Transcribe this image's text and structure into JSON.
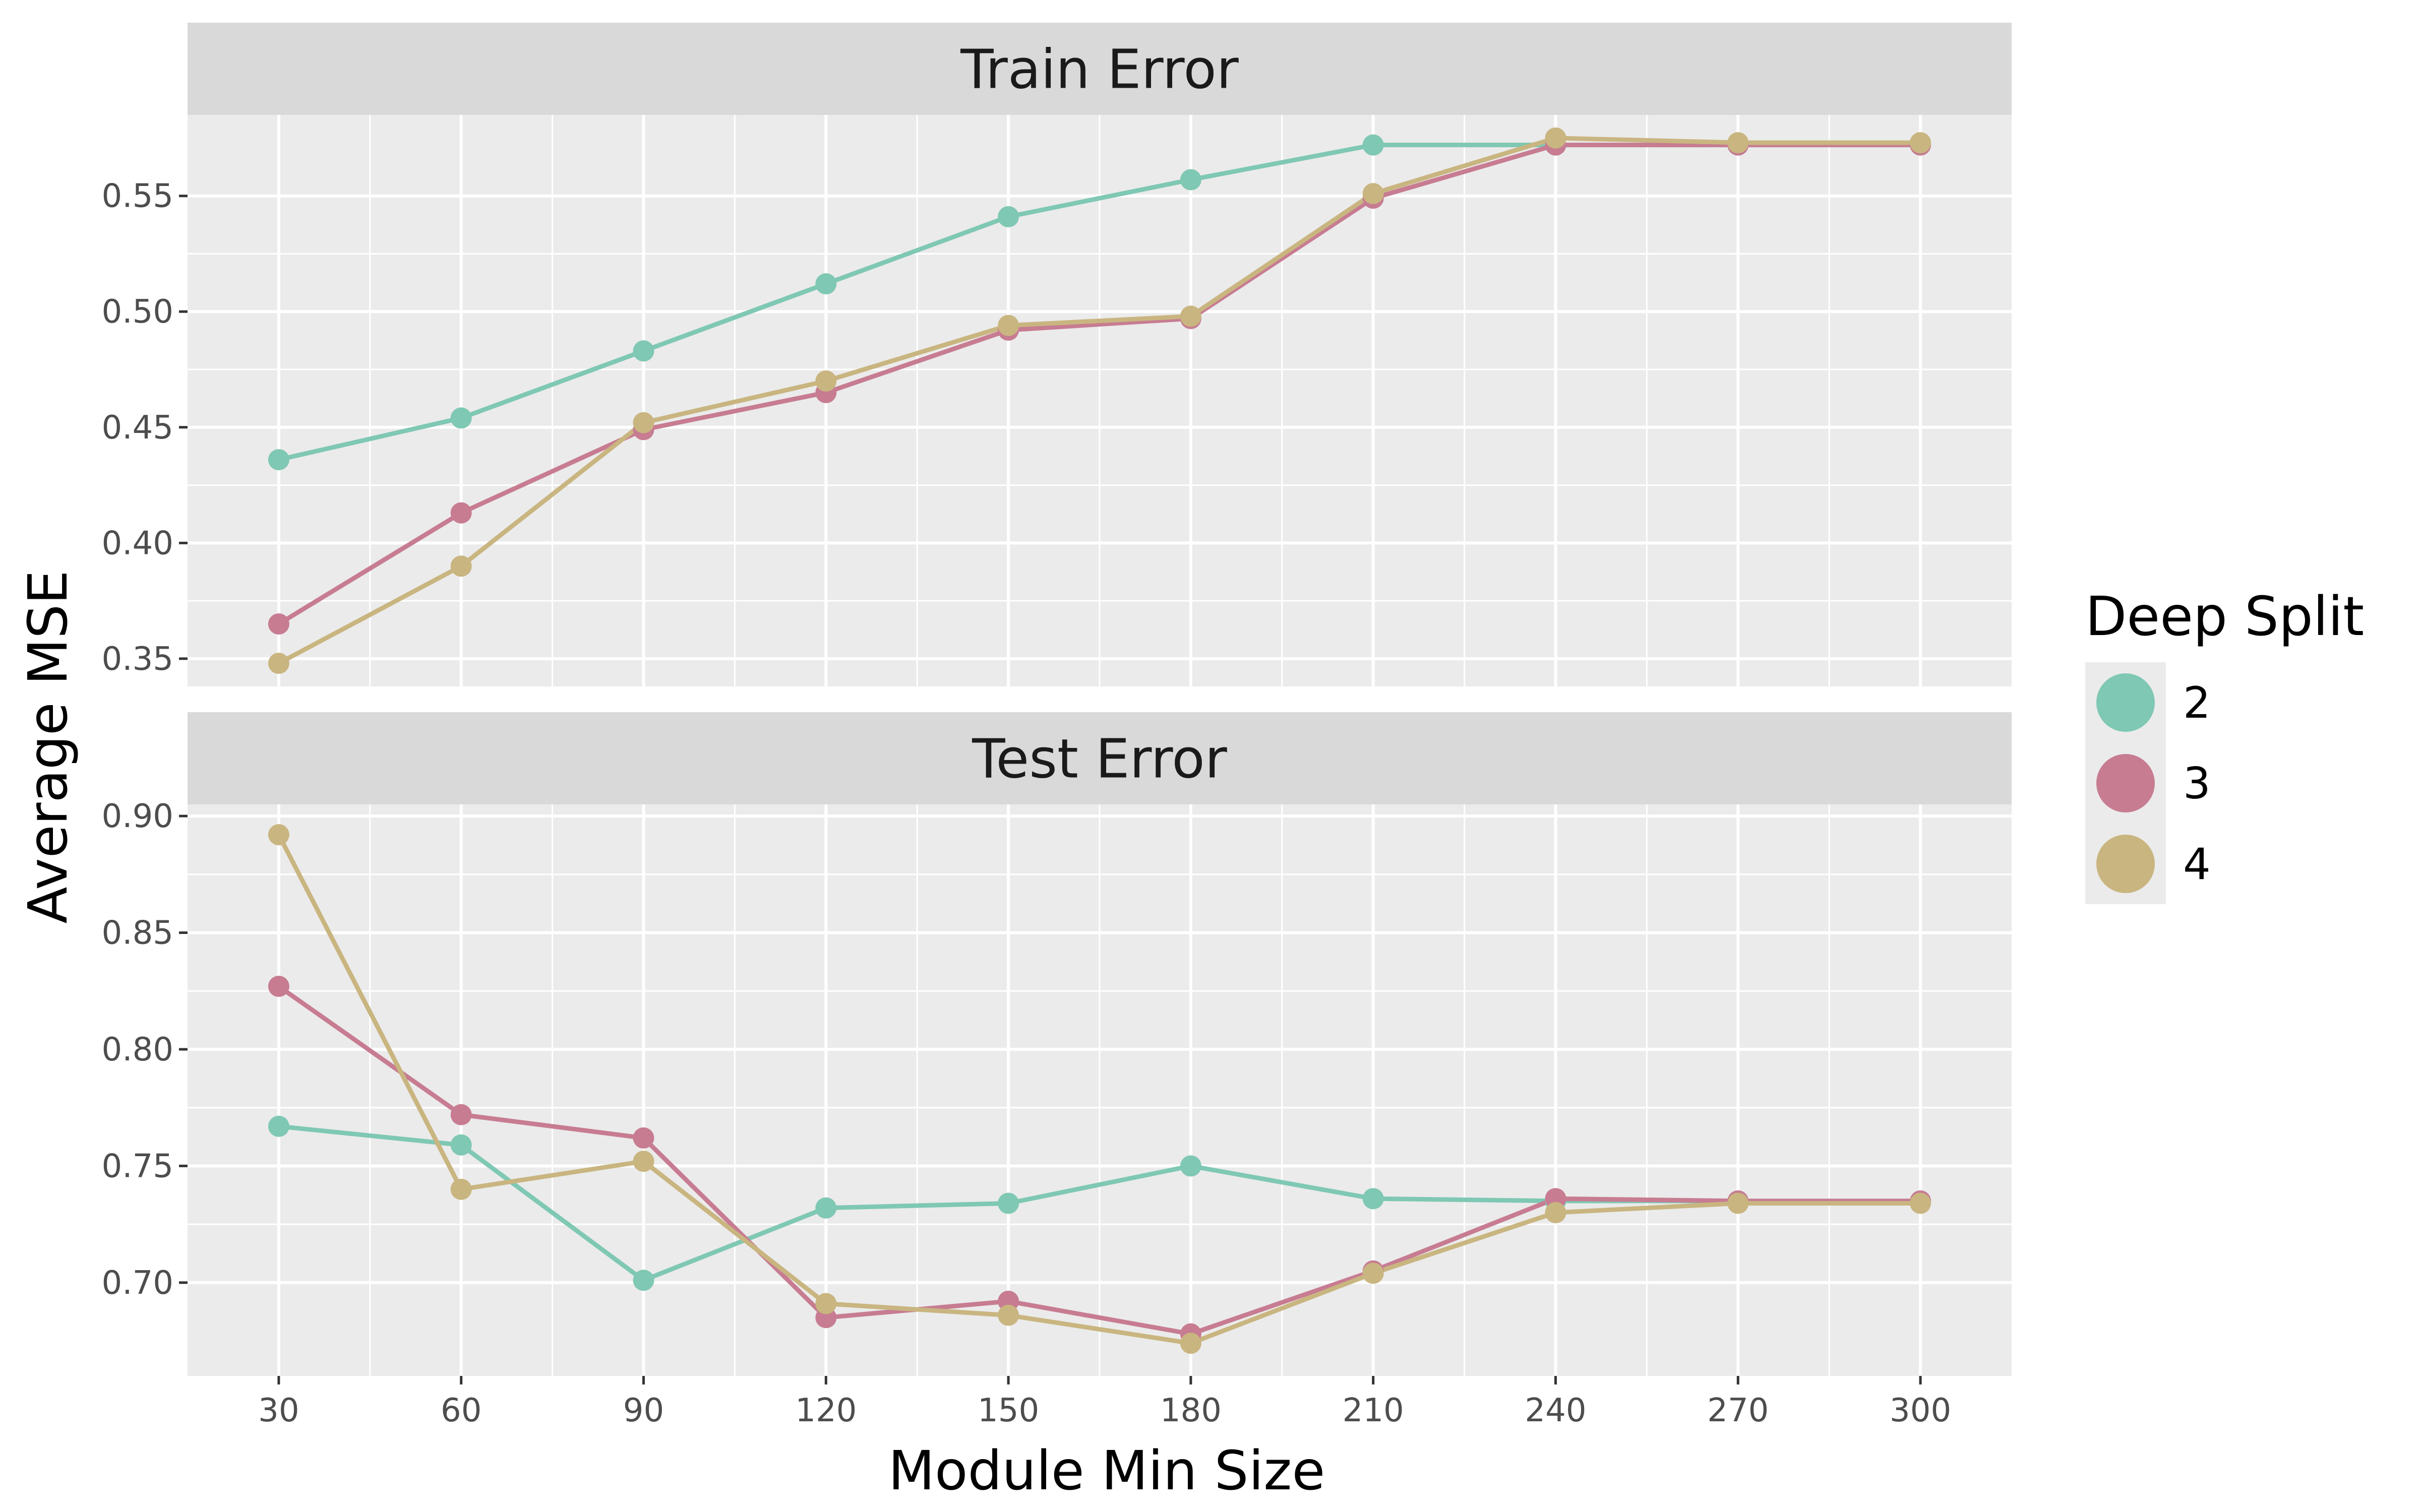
{
  "chart_data": {
    "type": "line",
    "xlabel": "Module Min Size",
    "ylabel": "Average MSE",
    "x": [
      30,
      60,
      90,
      120,
      150,
      180,
      210,
      240,
      270,
      300
    ],
    "xlim": [
      15,
      315
    ],
    "grid": true,
    "legend": {
      "title": "Deep Split",
      "placement": "right",
      "entries": [
        "2",
        "3",
        "4"
      ]
    },
    "colors": {
      "2": "#7fc8b3",
      "3": "#c77c92",
      "4": "#c9b580"
    },
    "panels": [
      {
        "title": "Train Error",
        "ylim": [
          0.338,
          0.585
        ],
        "yticks": [
          0.35,
          0.4,
          0.45,
          0.5,
          0.55
        ],
        "ytick_labels": [
          "0.35",
          "0.40",
          "0.45",
          "0.50",
          "0.55"
        ],
        "series": [
          {
            "name": "2",
            "values": [
              0.436,
              0.454,
              0.483,
              0.512,
              0.541,
              0.557,
              0.572,
              0.572,
              0.572,
              0.572
            ]
          },
          {
            "name": "3",
            "values": [
              0.365,
              0.413,
              0.449,
              0.465,
              0.492,
              0.497,
              0.549,
              0.572,
              0.572,
              0.572
            ]
          },
          {
            "name": "4",
            "values": [
              0.348,
              0.39,
              0.452,
              0.47,
              0.494,
              0.498,
              0.551,
              0.575,
              0.573,
              0.573
            ]
          }
        ]
      },
      {
        "title": "Test Error",
        "ylim": [
          0.66,
          0.905
        ],
        "yticks": [
          0.7,
          0.75,
          0.8,
          0.85,
          0.9
        ],
        "ytick_labels": [
          "0.70",
          "0.75",
          "0.80",
          "0.85",
          "0.90"
        ],
        "series": [
          {
            "name": "2",
            "values": [
              0.767,
              0.759,
              0.701,
              0.732,
              0.734,
              0.75,
              0.736,
              0.735,
              0.735,
              0.735
            ]
          },
          {
            "name": "3",
            "values": [
              0.827,
              0.772,
              0.762,
              0.685,
              0.692,
              0.678,
              0.705,
              0.736,
              0.735,
              0.735
            ]
          },
          {
            "name": "4",
            "values": [
              0.892,
              0.74,
              0.752,
              0.691,
              0.686,
              0.674,
              0.704,
              0.73,
              0.734,
              0.734
            ]
          }
        ]
      }
    ]
  }
}
